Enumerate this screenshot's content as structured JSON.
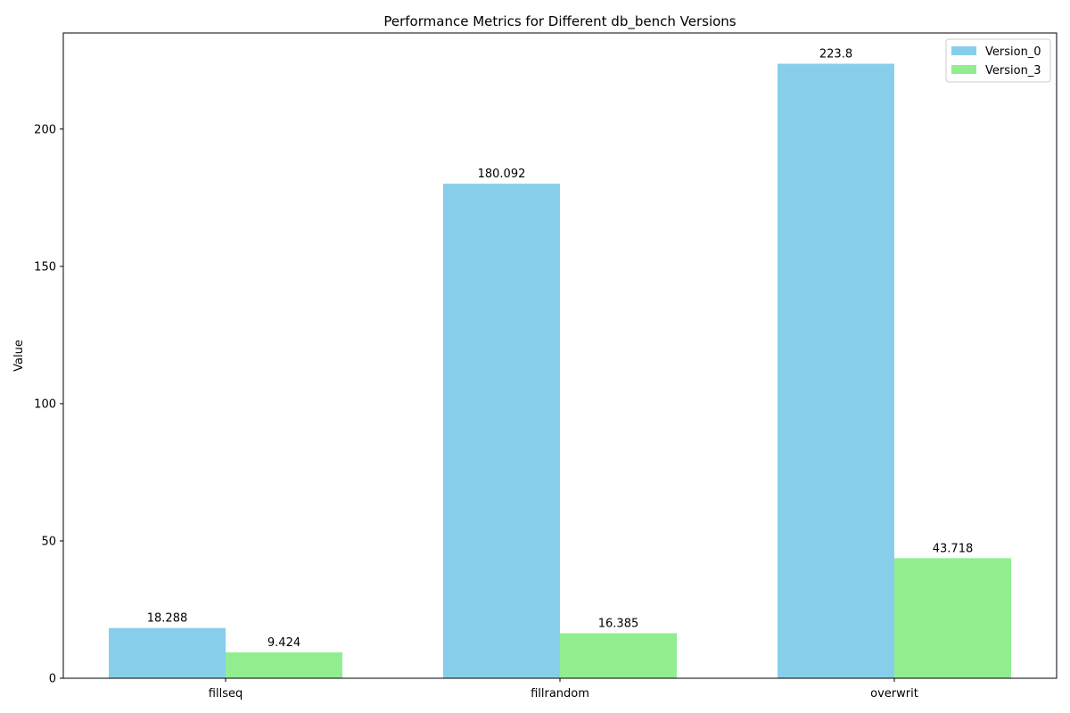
{
  "chart_data": {
    "type": "bar",
    "title": "Performance Metrics for Different db_bench Versions",
    "xlabel": "",
    "ylabel": "Value",
    "categories": [
      "fillseq",
      "fillrandom",
      "overwrit"
    ],
    "ylim": [
      0,
      235
    ],
    "yticks": [
      0,
      50,
      100,
      150,
      200
    ],
    "grid": false,
    "legend_position": "top-right",
    "series": [
      {
        "name": "Version_0",
        "color": "#87CEEB",
        "values": [
          18.288,
          180.092,
          223.8
        ],
        "labels": [
          "18.288",
          "180.092",
          "223.8"
        ]
      },
      {
        "name": "Version_3",
        "color": "#90EE90",
        "values": [
          9.424,
          16.385,
          43.718
        ],
        "labels": [
          "9.424",
          "16.385",
          "43.718"
        ]
      }
    ]
  }
}
